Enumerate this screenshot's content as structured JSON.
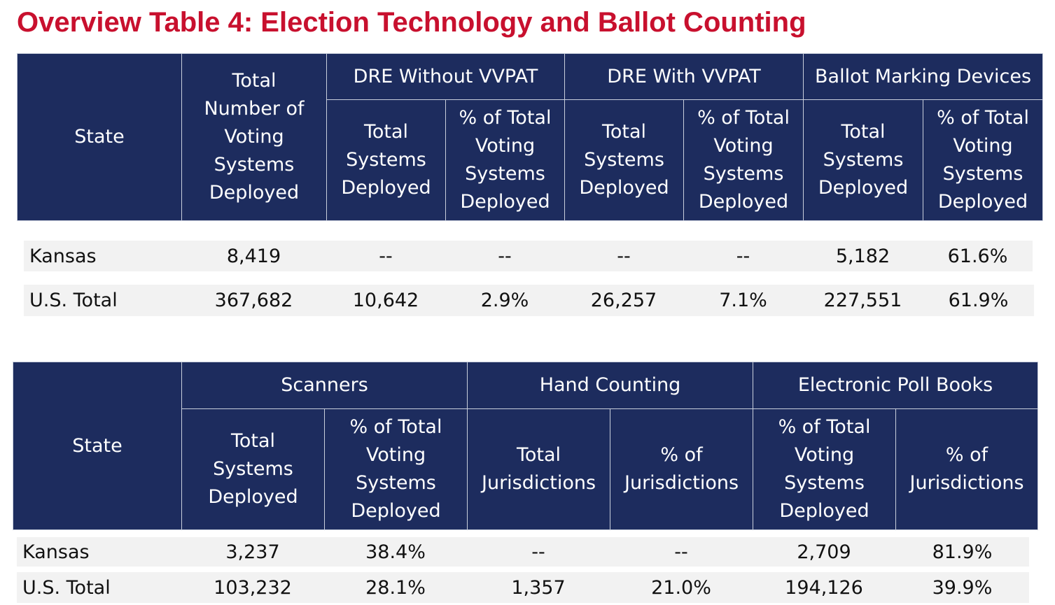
{
  "title": "Overview Table 4: Election Technology and Ballot Counting",
  "table1": {
    "headers": {
      "state": "State",
      "total_systems": [
        "Total",
        "Number of",
        "Voting",
        "Systems",
        "Deployed"
      ],
      "group1": "DRE Without VVPAT",
      "group2": "DRE With VVPAT",
      "group3": "Ballot Marking Devices",
      "sub_total": [
        "Total",
        "Systems",
        "Deployed"
      ],
      "sub_pct": [
        "% of Total",
        "Voting",
        "Systems",
        "Deployed"
      ]
    },
    "rows": [
      {
        "state": "Kansas",
        "total": "8,419",
        "dre_no_total": "--",
        "dre_no_pct": "--",
        "dre_with_total": "--",
        "dre_with_pct": "--",
        "bmd_total": "5,182",
        "bmd_pct": "61.6%"
      },
      {
        "state": "U.S. Total",
        "total": "367,682",
        "dre_no_total": "10,642",
        "dre_no_pct": "2.9%",
        "dre_with_total": "26,257",
        "dre_with_pct": "7.1%",
        "bmd_total": "227,551",
        "bmd_pct": "61.9%"
      }
    ]
  },
  "table2": {
    "headers": {
      "state": "State",
      "group1": "Scanners",
      "group2": "Hand Counting",
      "group3": "Electronic Poll Books",
      "scan_total": [
        "Total",
        "Systems",
        "Deployed"
      ],
      "scan_pct": [
        "% of Total",
        "Voting",
        "Systems",
        "Deployed"
      ],
      "hand_total": [
        "Total",
        "Jurisdictions"
      ],
      "hand_pct": [
        "% of",
        "Jurisdictions"
      ],
      "epb_pct_total": [
        "% of Total",
        "Voting",
        "Systems",
        "Deployed"
      ],
      "epb_pct_jur": [
        "% of",
        "Jurisdictions"
      ]
    },
    "rows": [
      {
        "state": "Kansas",
        "scan_total": "3,237",
        "scan_pct": "38.4%",
        "hand_total": "--",
        "hand_pct": "--",
        "epb_total": "2,709",
        "epb_pct": "81.9%"
      },
      {
        "state": "U.S. Total",
        "scan_total": "103,232",
        "scan_pct": "28.1%",
        "hand_total": "1,357",
        "hand_pct": "21.0%",
        "epb_total": "194,126",
        "epb_pct": "39.9%"
      }
    ]
  },
  "colors": {
    "header_bg": "#1d2c5e",
    "title": "#c8102e",
    "row_bg": "#f2f2f2"
  }
}
